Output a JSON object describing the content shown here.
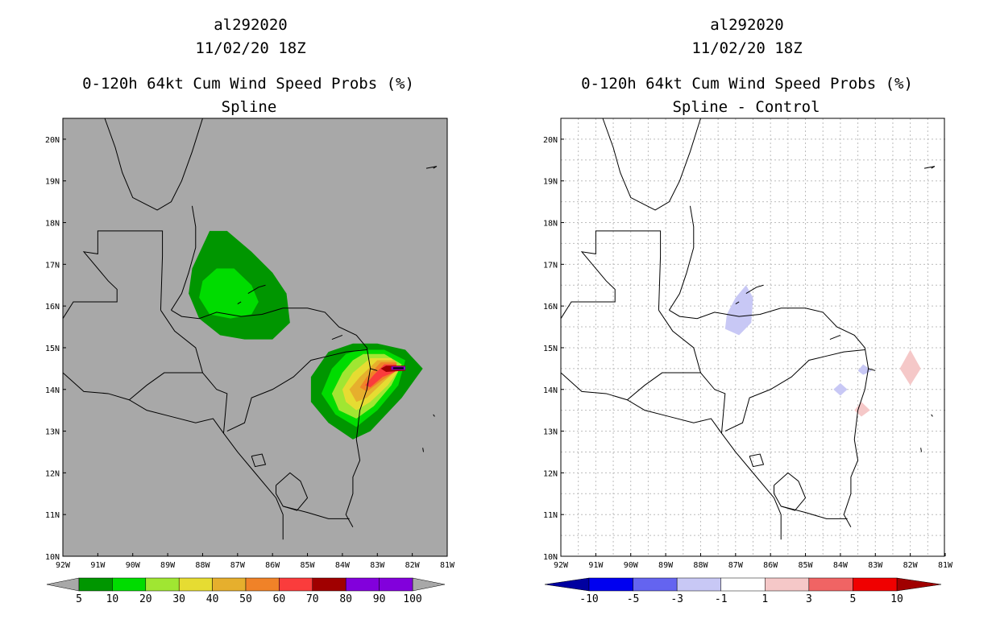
{
  "panels": [
    {
      "storm_id": "al292020",
      "datetime": "11/02/20 18Z",
      "title": "0-120h 64kt Cum Wind Speed Probs (%)",
      "subtitle": "Spline",
      "background": "#a8a8a8"
    },
    {
      "storm_id": "al292020",
      "datetime": "11/02/20 18Z",
      "title": "0-120h 64kt Cum Wind Speed Probs (%)",
      "subtitle": "Spline - Control",
      "background": "#ffffff"
    }
  ],
  "chart_data": [
    {
      "type": "heatmap",
      "title": "0-120h 64kt Cum Wind Speed Probs (%)",
      "subtitle": "Spline",
      "x_range": [
        -92,
        -81
      ],
      "y_range": [
        10,
        20.5
      ],
      "x_ticks": [
        "92W",
        "91W",
        "90W",
        "89W",
        "88W",
        "87W",
        "86W",
        "85W",
        "84W",
        "83W",
        "82W",
        "81W"
      ],
      "y_ticks": [
        "10N",
        "11N",
        "12N",
        "13N",
        "14N",
        "15N",
        "16N",
        "17N",
        "18N",
        "19N",
        "20N"
      ],
      "colorbar": {
        "labels": [
          "5",
          "10",
          "20",
          "30",
          "40",
          "50",
          "60",
          "70",
          "80",
          "90",
          "100"
        ],
        "colors": [
          "#009600",
          "#00dc00",
          "#a0e632",
          "#e6dc32",
          "#e6af2d",
          "#f08228",
          "#fa3c3c",
          "#a00000",
          "#8200dc"
        ]
      },
      "contours": [
        {
          "level": 5,
          "polygon": [
            [
              -87.8,
              17.8
            ],
            [
              -87.3,
              17.8
            ],
            [
              -86.6,
              17.3
            ],
            [
              -86,
              16.8
            ],
            [
              -85.6,
              16.3
            ],
            [
              -85.5,
              15.6
            ],
            [
              -86,
              15.2
            ],
            [
              -86.8,
              15.2
            ],
            [
              -87.5,
              15.3
            ],
            [
              -88.1,
              15.7
            ],
            [
              -88.4,
              16.3
            ],
            [
              -88.3,
              16.9
            ]
          ]
        },
        {
          "level": 10,
          "polygon": [
            [
              -87.6,
              16.9
            ],
            [
              -87.1,
              16.9
            ],
            [
              -86.6,
              16.5
            ],
            [
              -86.4,
              16.1
            ],
            [
              -86.6,
              15.8
            ],
            [
              -87.2,
              15.7
            ],
            [
              -87.8,
              15.8
            ],
            [
              -88.1,
              16.2
            ],
            [
              -88.0,
              16.6
            ]
          ]
        },
        {
          "level": 5,
          "polygon": [
            [
              -83.7,
              15.1
            ],
            [
              -83.0,
              15.1
            ],
            [
              -82.2,
              14.95
            ],
            [
              -81.7,
              14.5
            ],
            [
              -82.3,
              13.8
            ],
            [
              -83.2,
              13.0
            ],
            [
              -83.7,
              12.8
            ],
            [
              -84.4,
              13.2
            ],
            [
              -84.9,
              13.7
            ],
            [
              -84.9,
              14.3
            ],
            [
              -84.4,
              14.9
            ]
          ]
        },
        {
          "level": 10,
          "polygon": [
            [
              -83.5,
              14.95
            ],
            [
              -82.8,
              14.95
            ],
            [
              -82.2,
              14.7
            ],
            [
              -82.4,
              14.1
            ],
            [
              -83.0,
              13.5
            ],
            [
              -83.6,
              13.1
            ],
            [
              -84.2,
              13.4
            ],
            [
              -84.6,
              13.9
            ],
            [
              -84.3,
              14.5
            ],
            [
              -83.9,
              14.85
            ]
          ]
        },
        {
          "level": 20,
          "polygon": [
            [
              -83.4,
              14.85
            ],
            [
              -82.8,
              14.85
            ],
            [
              -82.3,
              14.6
            ],
            [
              -82.6,
              14.1
            ],
            [
              -83.1,
              13.6
            ],
            [
              -83.6,
              13.3
            ],
            [
              -84.1,
              13.5
            ],
            [
              -84.3,
              13.9
            ],
            [
              -84.0,
              14.4
            ],
            [
              -83.7,
              14.7
            ]
          ]
        },
        {
          "level": 30,
          "polygon": [
            [
              -83.2,
              14.75
            ],
            [
              -82.6,
              14.75
            ],
            [
              -82.35,
              14.5
            ],
            [
              -82.7,
              14.1
            ],
            [
              -83.2,
              13.7
            ],
            [
              -83.6,
              13.5
            ],
            [
              -83.9,
              13.7
            ],
            [
              -84.0,
              14.0
            ],
            [
              -83.7,
              14.4
            ]
          ]
        },
        {
          "level": 40,
          "polygon": [
            [
              -83.0,
              14.7
            ],
            [
              -82.5,
              14.7
            ],
            [
              -82.4,
              14.5
            ],
            [
              -82.8,
              14.2
            ],
            [
              -83.3,
              13.8
            ],
            [
              -83.6,
              13.7
            ],
            [
              -83.8,
              14.0
            ],
            [
              -83.5,
              14.3
            ]
          ]
        },
        {
          "level": 50,
          "polygon": [
            [
              -82.9,
              14.65
            ],
            [
              -82.45,
              14.65
            ],
            [
              -82.45,
              14.45
            ],
            [
              -82.9,
              14.2
            ],
            [
              -83.3,
              13.95
            ],
            [
              -83.5,
              14.05
            ],
            [
              -83.3,
              14.3
            ]
          ]
        },
        {
          "level": 60,
          "polygon": [
            [
              -82.8,
              14.6
            ],
            [
              -82.45,
              14.6
            ],
            [
              -82.5,
              14.42
            ],
            [
              -82.85,
              14.3
            ],
            [
              -83.2,
              14.05
            ],
            [
              -83.35,
              14.1
            ],
            [
              -83.1,
              14.35
            ]
          ]
        },
        {
          "level": 70,
          "polygon": [
            [
              -82.75,
              14.57
            ],
            [
              -82.2,
              14.57
            ],
            [
              -82.2,
              14.45
            ],
            [
              -82.75,
              14.42
            ],
            [
              -82.9,
              14.5
            ]
          ]
        },
        {
          "level": 80,
          "polygon": [
            [
              -82.6,
              14.55
            ],
            [
              -82.2,
              14.55
            ],
            [
              -82.2,
              14.47
            ],
            [
              -82.6,
              14.47
            ]
          ]
        },
        {
          "level": 90,
          "polygon": [
            [
              -82.55,
              14.53
            ],
            [
              -82.25,
              14.53
            ],
            [
              -82.25,
              14.49
            ],
            [
              -82.55,
              14.49
            ]
          ]
        }
      ]
    },
    {
      "type": "heatmap",
      "title": "0-120h 64kt Cum Wind Speed Probs (%)",
      "subtitle": "Spline - Control",
      "x_range": [
        -92,
        -81
      ],
      "y_range": [
        10,
        20.5
      ],
      "x_ticks": [
        "92W",
        "91W",
        "90W",
        "89W",
        "88W",
        "87W",
        "86W",
        "85W",
        "84W",
        "83W",
        "82W",
        "81W"
      ],
      "y_ticks": [
        "10N",
        "11N",
        "12N",
        "13N",
        "14N",
        "15N",
        "16N",
        "17N",
        "18N",
        "19N",
        "20N"
      ],
      "colorbar": {
        "labels": [
          "-10",
          "-5",
          "-3",
          "-1",
          "1",
          "3",
          "5",
          "10"
        ],
        "colors": [
          "#0000a0",
          "#0000f0",
          "#6464f0",
          "#c8c8f5",
          "#ffffff",
          "#f5c8c8",
          "#f06464",
          "#f00000",
          "#a00000"
        ]
      },
      "contours": [
        {
          "level": -3,
          "polygon": [
            [
              -86.7,
              16.5
            ],
            [
              -86.5,
              16.2
            ],
            [
              -86.55,
              15.6
            ],
            [
              -86.9,
              15.3
            ],
            [
              -87.3,
              15.45
            ],
            [
              -87.25,
              15.8
            ],
            [
              -87.0,
              16.2
            ]
          ]
        },
        {
          "level": -3,
          "polygon": [
            [
              -83.35,
              14.6
            ],
            [
              -83.1,
              14.45
            ],
            [
              -83.35,
              14.35
            ],
            [
              -83.5,
              14.45
            ]
          ]
        },
        {
          "level": -3,
          "polygon": [
            [
              -84.0,
              14.15
            ],
            [
              -83.8,
              14.0
            ],
            [
              -84.0,
              13.85
            ],
            [
              -84.2,
              14.0
            ]
          ]
        },
        {
          "level": 3,
          "polygon": [
            [
              -82.0,
              14.95
            ],
            [
              -81.7,
              14.5
            ],
            [
              -82.0,
              14.1
            ],
            [
              -82.3,
              14.5
            ]
          ]
        },
        {
          "level": 3,
          "polygon": [
            [
              -83.4,
              13.7
            ],
            [
              -83.15,
              13.5
            ],
            [
              -83.4,
              13.35
            ],
            [
              -83.6,
              13.5
            ]
          ]
        }
      ]
    }
  ]
}
